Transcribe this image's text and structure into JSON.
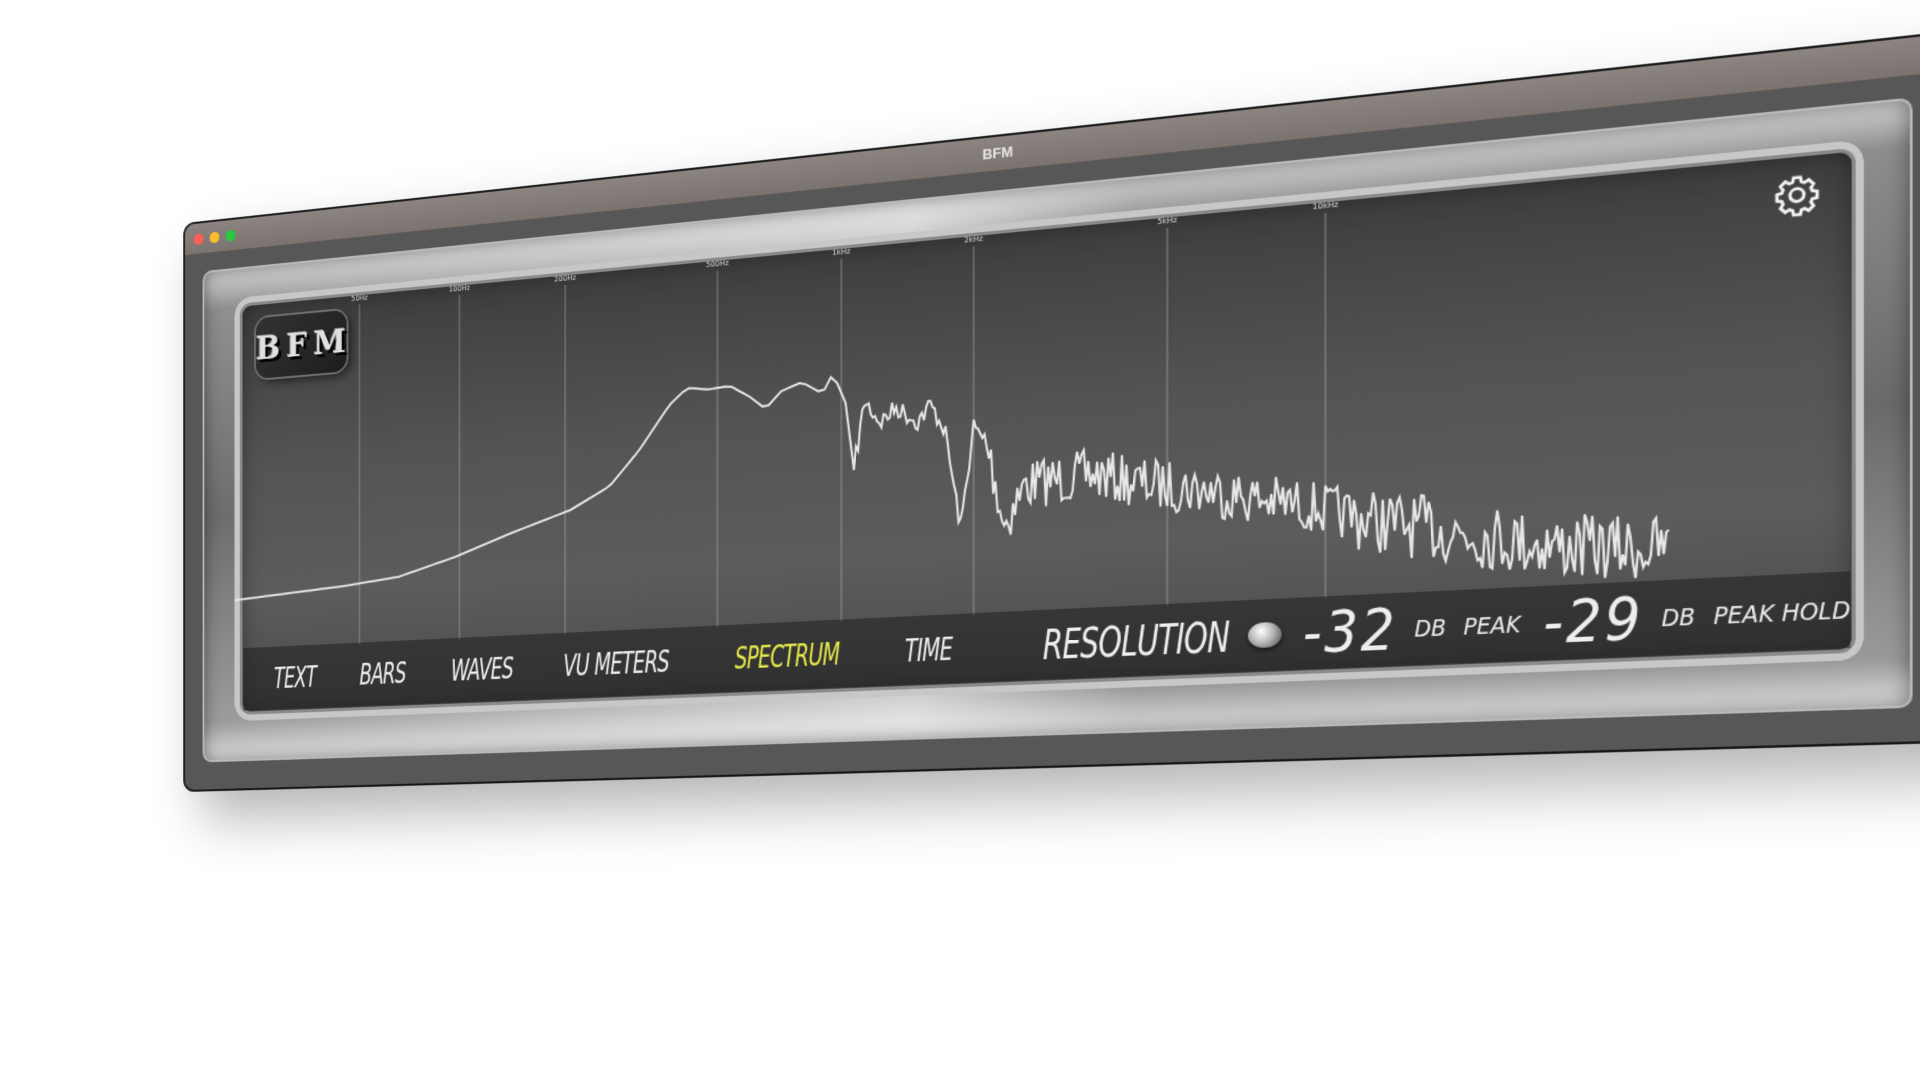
{
  "window": {
    "title": "BFM"
  },
  "logo": {
    "text": "BFM"
  },
  "settings": {
    "icon": "gear-icon"
  },
  "frequency_axis": {
    "ticks": [
      "50Hz",
      "100Hz",
      "200Hz",
      "500Hz",
      "1kHz",
      "2kHz",
      "5kHz",
      "10kHz"
    ]
  },
  "modes": [
    {
      "label": "TEXT",
      "active": false
    },
    {
      "label": "BARS",
      "active": false
    },
    {
      "label": "WAVES",
      "active": false
    },
    {
      "label": "VU METERS",
      "active": false
    },
    {
      "label": "SPECTRUM",
      "active": true
    },
    {
      "label": "TIME",
      "active": false
    }
  ],
  "resolution": {
    "label": "RESOLUTION"
  },
  "readouts": {
    "level_value": "-32",
    "level_unit": "DB",
    "peak_label": "PEAK",
    "peak_value": "-29",
    "peak_unit": "DB",
    "peak_hold_label": "PEAK HOLD"
  },
  "colors": {
    "active_mode": "#e5e84a",
    "text": "#eeeeee",
    "spectrum_line": "#e8e8e8",
    "gridline": "#bdbdbd"
  }
}
